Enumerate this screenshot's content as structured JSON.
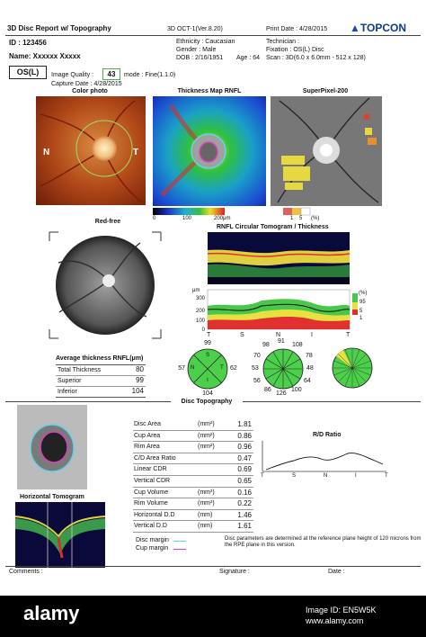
{
  "header": {
    "report_title": "3D Disc Report w/ Topography",
    "device": "3D OCT-1(Ver.8.20)",
    "print_date": "Print Date : 4/28/2015",
    "brand": "TOPCON",
    "id": "ID : 123456",
    "name": "Name:  Xxxxxx Xxxxx",
    "ethnicity": "Ethnicity : Caucasian",
    "gender": "Gender : Male",
    "dob": "DOB : 2/16/1951",
    "age": "Age : 64",
    "technician": "Technician :",
    "fixation": "Fixation : OS(L) Disc",
    "scan": "Scan : 3D(6.0 x 6.0mm - 512 x 128)"
  },
  "eye": {
    "label": "OS(L)",
    "image_quality_label": "Image Quality :",
    "image_quality_value": "43",
    "mode": "mode : Fine(1.1.0)",
    "capture_date": "Capture Date :  4/28/2015"
  },
  "panels": {
    "color_photo": "Color photo",
    "thickness_map": "Thickness Map RNFL",
    "superpixel": "SuperPixel-200",
    "red_free": "Red-free",
    "rnfl_tomogram": "RNFL Circular Tomogram / Thickness",
    "disc_topography": "Disc Topography",
    "horizontal_tomogram": "Horizontal Tomogram",
    "rd_ratio": "R/D Ratio"
  },
  "photo_labels": {
    "nasal": "N",
    "temporal": "T"
  },
  "thickness_scale": {
    "min": "0",
    "mid": "100",
    "max": "200μm"
  },
  "superpixel_scale": {
    "a": "1",
    "b": "5",
    "c": "(%)"
  },
  "profile": {
    "unit": "μm",
    "y_ticks": [
      "300",
      "200",
      "100",
      "0"
    ],
    "x_labels": [
      "T",
      "S",
      "N",
      "I",
      "T"
    ],
    "legend": [
      "(%)",
      "95",
      "5",
      "1"
    ]
  },
  "average_thickness": {
    "title": "Average thickness RNFL(μm)",
    "rows": [
      {
        "label": "Total Thickness",
        "value": "80"
      },
      {
        "label": "Superior",
        "value": "99"
      },
      {
        "label": "Inferior",
        "value": "104"
      }
    ]
  },
  "quadrant_chart": {
    "top": "99",
    "left": "57",
    "right": "62",
    "bottom": "104",
    "s": "S",
    "n": "N",
    "t": "T",
    "i": "I"
  },
  "clock_chart": {
    "values_top": [
      "98",
      "91",
      "108"
    ],
    "values_left": [
      "70",
      "53",
      "56"
    ],
    "values_right": [
      "78",
      "48",
      "64"
    ],
    "values_bottom": [
      "86",
      "126",
      "100"
    ]
  },
  "disc_params": [
    {
      "label": "Disc Area",
      "unit": "(mm²)",
      "value": "1.81"
    },
    {
      "label": "Cup Area",
      "unit": "(mm²)",
      "value": "0.86"
    },
    {
      "label": "Rim Area",
      "unit": "(mm²)",
      "value": "0.96"
    },
    {
      "label": "C/D Area Ratio",
      "unit": "",
      "value": "0.47"
    },
    {
      "label": "Linear CDR",
      "unit": "",
      "value": "0.69"
    },
    {
      "label": "Vertical CDR",
      "unit": "",
      "value": "0.65"
    },
    {
      "label": "Cup Volume",
      "unit": "(mm³)",
      "value": "0.16"
    },
    {
      "label": "Rim Volume",
      "unit": "(mm³)",
      "value": "0.22"
    },
    {
      "label": "Horizontal D.D",
      "unit": "(mm)",
      "value": "1.46"
    },
    {
      "label": "Vertical D.D",
      "unit": "(mm)",
      "value": "1.61"
    }
  ],
  "rd_axis": [
    "T",
    "S",
    "N",
    "I",
    "T"
  ],
  "legend_margins": {
    "disc": "Disc margin",
    "cup": "Cup margin"
  },
  "note": "Disc parameters are determined at the reference plane height of 120 microns from the RPE plane in this version.",
  "footer": {
    "comments": "Comments :",
    "signature": "Signature :",
    "date": "Date :"
  },
  "watermark": {
    "brand": "alamy",
    "image_id": "Image ID: EN5W5K",
    "site": "www.alamy.com"
  },
  "colors": {
    "disc_margin": "#5fd4e8",
    "cup_margin": "#e040c0",
    "footer_bg": "#000000"
  }
}
